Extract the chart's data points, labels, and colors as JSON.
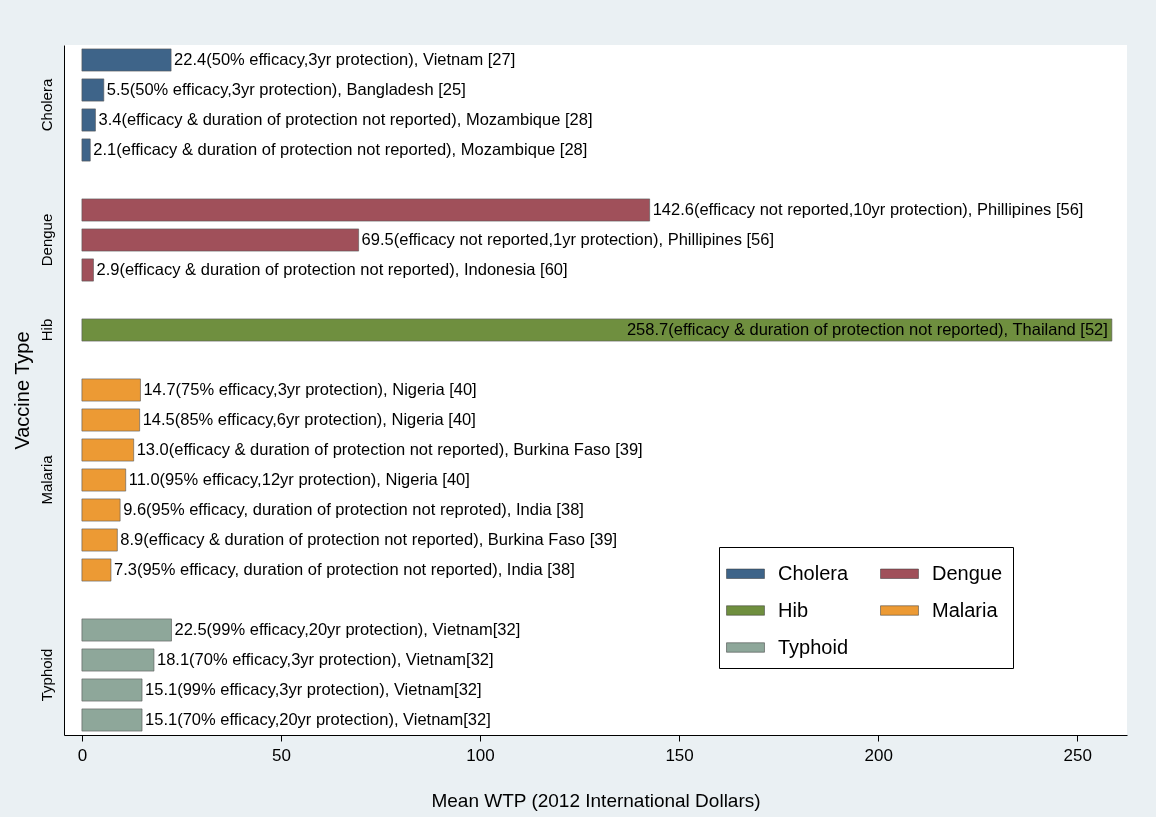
{
  "chart_data": {
    "type": "bar",
    "orientation": "horizontal",
    "xlabel": "Mean WTP (2012 International Dollars)",
    "ylabel": "Vaccine Type",
    "categories": [
      null,
      null,
      null,
      null,
      null,
      null,
      null,
      null,
      null,
      null,
      null,
      null,
      null,
      null,
      null,
      null,
      null,
      null,
      null,
      null,
      null,
      null,
      null
    ],
    "xlim": [
      -4.5,
      262.5
    ],
    "xticks": [
      0,
      50,
      100,
      150,
      200,
      250
    ],
    "grid": false,
    "legend": "bottom right",
    "series": [
      {
        "name": "Cholera",
        "color": "#3e6489",
        "values": [
          22.4,
          5.5,
          3.4,
          2.1,
          null,
          null,
          null,
          null,
          null,
          null,
          null,
          null,
          null,
          null,
          null,
          null,
          null,
          null,
          null,
          null,
          null,
          null,
          null
        ],
        "value_labels": [
          "22.4(50% efficacy,3yr protection), Vietnam [27]",
          "5.5(50% efficacy,3yr protection), Bangladesh [25]",
          "3.4(efficacy & duration of protection not reported), Mozambique [28]",
          "2.1(efficacy & duration of protection not reported), Mozambique [28]",
          null,
          null,
          null,
          null,
          null,
          null,
          null,
          null,
          null,
          null,
          null,
          null,
          null,
          null,
          null,
          null,
          null,
          null,
          null
        ]
      },
      {
        "name": "Dengue",
        "color": "#a0505a",
        "values": [
          null,
          null,
          null,
          null,
          null,
          142.6,
          69.5,
          2.9,
          null,
          null,
          null,
          null,
          null,
          null,
          null,
          null,
          null,
          null,
          null,
          null,
          null,
          null,
          null
        ],
        "value_labels": [
          null,
          null,
          null,
          null,
          null,
          "142.6(efficacy not reported,10yr protection), Phillipines [56]",
          "69.5(efficacy not reported,1yr protection), Phillipines [56]",
          "2.9(efficacy & duration of protection not reported), Indonesia [60]",
          null,
          null,
          null,
          null,
          null,
          null,
          null,
          null,
          null,
          null,
          null,
          null,
          null,
          null,
          null
        ]
      },
      {
        "name": "Hib",
        "color": "#6f8f3f",
        "values": [
          null,
          null,
          null,
          null,
          null,
          null,
          null,
          null,
          null,
          258.7,
          null,
          null,
          null,
          null,
          null,
          null,
          null,
          null,
          null,
          null,
          null,
          null,
          null
        ],
        "value_labels": [
          null,
          null,
          null,
          null,
          null,
          null,
          null,
          null,
          null,
          "258.7(efficacy & duration of protection not reported), Thailand [52]",
          null,
          null,
          null,
          null,
          null,
          null,
          null,
          null,
          null,
          null,
          null,
          null,
          null
        ]
      },
      {
        "name": "Malaria",
        "color": "#ec9a34",
        "values": [
          null,
          null,
          null,
          null,
          null,
          null,
          null,
          null,
          null,
          null,
          null,
          14.7,
          14.5,
          13.0,
          11.0,
          9.6,
          8.9,
          7.3,
          null,
          null,
          null,
          null,
          null
        ],
        "value_labels": [
          null,
          null,
          null,
          null,
          null,
          null,
          null,
          null,
          null,
          null,
          null,
          "14.7(75% efficacy,3yr protection), Nigeria [40]",
          "14.5(85% efficacy,6yr protection), Nigeria [40]",
          "13.0(efficacy & duration of protection not reported), Burkina Faso [39]",
          "11.0(95% efficacy,12yr protection), Nigeria [40]",
          "9.6(95% efficacy, duration of protection not reproted), India [38]",
          "8.9(efficacy & duration of protection not reported), Burkina Faso [39]",
          "7.3(95% efficacy, duration of protection not reported), India [38]",
          null,
          null,
          null,
          null,
          null
        ]
      },
      {
        "name": "Typhoid",
        "color": "#8ea79a",
        "values": [
          null,
          null,
          null,
          null,
          null,
          null,
          null,
          null,
          null,
          null,
          null,
          null,
          null,
          null,
          null,
          null,
          null,
          null,
          null,
          22.5,
          18.1,
          15.1,
          15.1
        ],
        "value_labels": [
          null,
          null,
          null,
          null,
          null,
          null,
          null,
          null,
          null,
          null,
          null,
          null,
          null,
          null,
          null,
          null,
          null,
          null,
          null,
          "22.5(99% efficacy,20yr protection), Vietnam[32]",
          "18.1(70% efficacy,3yr protection), Vietnam[32]",
          "15.1(99% efficacy,3yr protection), Vietnam[32]",
          "15.1(70% efficacy,20yr protection), Vietnam[32]"
        ]
      }
    ]
  }
}
